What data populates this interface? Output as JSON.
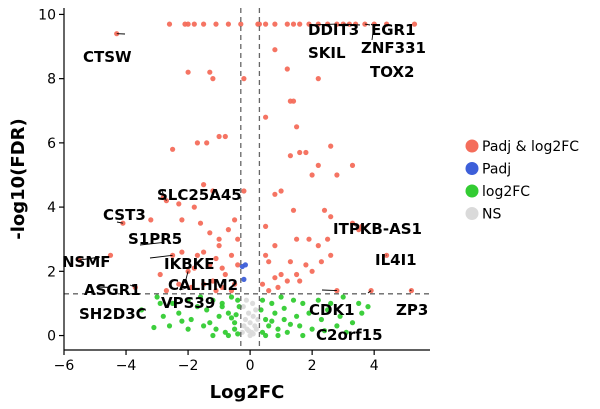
{
  "chart_data": {
    "type": "scatter",
    "xlabel": "Log2FC",
    "ylabel": "-log10(FDR)",
    "xlim": [
      -6,
      5.8
    ],
    "ylim": [
      -0.45,
      10.2
    ],
    "xticks": [
      -6,
      -4,
      -2,
      0,
      2,
      4
    ],
    "xtick_labels": [
      "−6",
      "−4",
      "−2",
      "0",
      "2",
      "4"
    ],
    "yticks": [
      0,
      2,
      4,
      6,
      8,
      10
    ],
    "ytick_labels": [
      "0",
      "2",
      "4",
      "6",
      "8",
      "10"
    ],
    "thresholds": {
      "log2fc": [
        -0.3,
        0.3
      ],
      "neg_log10_fdr": 1.3
    },
    "grid": false,
    "legend_position": "right",
    "colors": {
      "Padj & log2FC": "#f46d5b",
      "Padj": "#3d5fd9",
      "log2FC": "#33cc33",
      "NS": "#dadada"
    },
    "series": [
      {
        "name": "Padj & log2FC",
        "points": [
          [
            -4.3,
            9.4
          ],
          [
            -2.6,
            9.7
          ],
          [
            -2.1,
            9.7
          ],
          [
            -2.0,
            9.7
          ],
          [
            -1.8,
            9.7
          ],
          [
            -1.5,
            9.7
          ],
          [
            -1.1,
            9.7
          ],
          [
            -0.7,
            9.7
          ],
          [
            -0.3,
            9.7
          ],
          [
            0.25,
            9.7
          ],
          [
            0.3,
            9.7
          ],
          [
            0.5,
            9.7
          ],
          [
            0.8,
            9.7
          ],
          [
            1.2,
            9.7
          ],
          [
            1.4,
            9.7
          ],
          [
            1.6,
            9.7
          ],
          [
            1.9,
            9.7
          ],
          [
            2.2,
            9.7
          ],
          [
            2.5,
            9.7
          ],
          [
            2.8,
            9.7
          ],
          [
            3.0,
            9.7
          ],
          [
            3.2,
            9.7
          ],
          [
            3.4,
            9.7
          ],
          [
            3.7,
            9.7
          ],
          [
            4.0,
            9.7
          ],
          [
            4.4,
            9.7
          ],
          [
            5.3,
            9.7
          ],
          [
            0.8,
            8.9
          ],
          [
            1.2,
            8.3
          ],
          [
            2.2,
            8.0
          ],
          [
            -1.3,
            8.2
          ],
          [
            -1.2,
            8.0
          ],
          [
            -0.2,
            8.0
          ],
          [
            -2.0,
            8.2
          ],
          [
            1.3,
            7.3
          ],
          [
            1.4,
            7.3
          ],
          [
            0.5,
            6.8
          ],
          [
            -1.7,
            6.0
          ],
          [
            -2.5,
            5.8
          ],
          [
            -1.0,
            6.2
          ],
          [
            -0.8,
            6.2
          ],
          [
            -1.4,
            6.0
          ],
          [
            1.5,
            6.5
          ],
          [
            2.6,
            5.9
          ],
          [
            1.6,
            5.7
          ],
          [
            1.8,
            5.7
          ],
          [
            1.3,
            5.6
          ],
          [
            2.2,
            5.3
          ],
          [
            3.3,
            5.3
          ],
          [
            2.8,
            5.0
          ],
          [
            2.0,
            5.0
          ],
          [
            0.8,
            4.4
          ],
          [
            1.0,
            4.5
          ],
          [
            -0.2,
            4.5
          ],
          [
            -1.5,
            4.7
          ],
          [
            -1.2,
            4.5
          ],
          [
            -2.8,
            4.3
          ],
          [
            -2.7,
            4.2
          ],
          [
            -2.3,
            4.1
          ],
          [
            -1.8,
            4.0
          ],
          [
            1.4,
            3.9
          ],
          [
            2.4,
            3.9
          ],
          [
            2.6,
            3.7
          ],
          [
            3.6,
            3.4
          ],
          [
            3.5,
            3.3
          ],
          [
            3.3,
            3.5
          ],
          [
            -4.1,
            3.5
          ],
          [
            -3.2,
            3.6
          ],
          [
            -2.2,
            3.6
          ],
          [
            -1.6,
            3.5
          ],
          [
            -0.7,
            3.3
          ],
          [
            -0.5,
            3.6
          ],
          [
            -1.0,
            3.0
          ],
          [
            -1.3,
            3.2
          ],
          [
            -0.4,
            3.0
          ],
          [
            1.9,
            3.0
          ],
          [
            2.5,
            3.0
          ],
          [
            2.2,
            2.8
          ],
          [
            1.5,
            3.0
          ],
          [
            0.5,
            3.4
          ],
          [
            0.8,
            2.8
          ],
          [
            -2.5,
            2.5
          ],
          [
            -2.2,
            2.6
          ],
          [
            -1.7,
            2.5
          ],
          [
            -1.5,
            2.6
          ],
          [
            -1.1,
            2.4
          ],
          [
            -0.6,
            2.5
          ],
          [
            -1.3,
            2.2
          ],
          [
            -0.9,
            2.1
          ],
          [
            -0.4,
            2.2
          ],
          [
            -1.8,
            2.1
          ],
          [
            -2.0,
            2.0
          ],
          [
            0.5,
            2.5
          ],
          [
            0.6,
            2.3
          ],
          [
            1.3,
            2.3
          ],
          [
            1.8,
            2.2
          ],
          [
            2.3,
            2.3
          ],
          [
            2.6,
            2.5
          ],
          [
            2.0,
            2.0
          ],
          [
            1.0,
            1.9
          ],
          [
            1.5,
            1.9
          ],
          [
            0.8,
            1.8
          ],
          [
            1.2,
            1.7
          ],
          [
            0.4,
            1.6
          ],
          [
            0.9,
            1.5
          ],
          [
            1.6,
            1.7
          ],
          [
            -0.8,
            1.9
          ],
          [
            -1.2,
            1.7
          ],
          [
            -1.5,
            1.6
          ],
          [
            -2.3,
            1.6
          ],
          [
            -0.5,
            1.6
          ],
          [
            -0.9,
            1.5
          ],
          [
            -1.9,
            1.5
          ],
          [
            -1.1,
            1.4
          ],
          [
            -0.6,
            1.4
          ],
          [
            -2.7,
            1.4
          ],
          [
            -5.5,
            2.35
          ],
          [
            -3.7,
            1.5
          ],
          [
            -4.5,
            2.5
          ],
          [
            4.4,
            2.5
          ],
          [
            5.2,
            1.4
          ],
          [
            3.9,
            1.4
          ],
          [
            -1.0,
            2.8
          ],
          [
            0.6,
            1.4
          ],
          [
            2.8,
            1.4
          ],
          [
            -2.9,
            1.9
          ]
        ]
      },
      {
        "name": "Padj",
        "points": [
          [
            -0.15,
            2.2
          ],
          [
            -0.25,
            2.15
          ],
          [
            -0.2,
            1.75
          ]
        ]
      },
      {
        "name": "log2FC",
        "points": [
          [
            -3.0,
            1.2
          ],
          [
            -2.5,
            1.0
          ],
          [
            -2.0,
            1.1
          ],
          [
            -1.6,
            1.2
          ],
          [
            -1.2,
            1.1
          ],
          [
            -0.9,
            1.0
          ],
          [
            -0.6,
            1.2
          ],
          [
            -0.4,
            1.1
          ],
          [
            0.4,
            1.1
          ],
          [
            0.7,
            1.0
          ],
          [
            1.0,
            1.2
          ],
          [
            1.4,
            1.1
          ],
          [
            1.7,
            1.0
          ],
          [
            2.2,
            1.1
          ],
          [
            2.6,
            1.0
          ],
          [
            3.0,
            1.2
          ],
          [
            3.5,
            1.0
          ],
          [
            3.8,
            0.9
          ],
          [
            -3.5,
            0.8
          ],
          [
            -2.8,
            0.6
          ],
          [
            -2.3,
            0.7
          ],
          [
            -1.9,
            0.5
          ],
          [
            -1.4,
            0.8
          ],
          [
            -1.0,
            0.6
          ],
          [
            -0.7,
            0.7
          ],
          [
            -0.5,
            0.4
          ],
          [
            -0.35,
            0.9
          ],
          [
            0.35,
            0.8
          ],
          [
            0.5,
            0.5
          ],
          [
            0.8,
            0.7
          ],
          [
            1.1,
            0.5
          ],
          [
            1.5,
            0.6
          ],
          [
            1.9,
            0.7
          ],
          [
            2.3,
            0.5
          ],
          [
            2.9,
            0.6
          ],
          [
            3.3,
            0.4
          ],
          [
            -2.6,
            0.3
          ],
          [
            -2.0,
            0.2
          ],
          [
            -1.5,
            0.3
          ],
          [
            -1.1,
            0.2
          ],
          [
            -0.8,
            0.1
          ],
          [
            -0.5,
            0.2
          ],
          [
            -0.4,
            0.05
          ],
          [
            0.4,
            0.1
          ],
          [
            0.6,
            0.3
          ],
          [
            0.9,
            0.2
          ],
          [
            1.2,
            0.1
          ],
          [
            1.6,
            0.3
          ],
          [
            2.0,
            0.2
          ],
          [
            2.4,
            0.15
          ],
          [
            2.8,
            0.3
          ],
          [
            3.1,
            0.1
          ],
          [
            -1.7,
            0.9
          ],
          [
            -1.3,
            0.4
          ],
          [
            -0.9,
            0.9
          ],
          [
            -0.6,
            0.55
          ],
          [
            -1.2,
            0.0
          ],
          [
            -0.7,
            0.0
          ],
          [
            0.5,
            0.0
          ],
          [
            0.9,
            0.0
          ],
          [
            1.3,
            0.35
          ],
          [
            1.7,
            0.0
          ],
          [
            -3.1,
            0.25
          ],
          [
            -2.2,
            0.45
          ],
          [
            2.5,
            0.8
          ],
          [
            3.6,
            0.7
          ],
          [
            -2.9,
            1.0
          ],
          [
            1.1,
            0.85
          ],
          [
            0.7,
            0.45
          ],
          [
            -0.45,
            0.65
          ]
        ]
      },
      {
        "name": "NS",
        "points": [
          [
            -0.25,
            0.1
          ],
          [
            -0.2,
            0.3
          ],
          [
            -0.15,
            0.5
          ],
          [
            -0.1,
            0.2
          ],
          [
            -0.05,
            0.7
          ],
          [
            0.0,
            0.4
          ],
          [
            0.05,
            0.1
          ],
          [
            0.1,
            0.6
          ],
          [
            0.15,
            0.3
          ],
          [
            0.2,
            0.2
          ],
          [
            -0.22,
            0.9
          ],
          [
            -0.12,
            1.1
          ],
          [
            0.08,
            1.0
          ],
          [
            0.18,
            0.8
          ],
          [
            0.25,
            0.5
          ],
          [
            0.0,
            0.0
          ],
          [
            -0.05,
            0.15
          ],
          [
            0.1,
            0.05
          ]
        ]
      }
    ],
    "annotations": [
      {
        "text": "DDIT3",
        "x": 2.8,
        "y": 9.7
      },
      {
        "text": "EGR1",
        "x": 3.9,
        "y": 9.7
      },
      {
        "text": "SKIL",
        "x": 3.0,
        "y": 9.7
      },
      {
        "text": "ZNF331",
        "x": 3.7,
        "y": 9.7
      },
      {
        "text": "TOX2",
        "x": 4.0,
        "y": 9.7
      },
      {
        "text": "CTSW",
        "x": -4.3,
        "y": 9.4
      },
      {
        "text": "SLC25A45",
        "x": -2.7,
        "y": 4.2
      },
      {
        "text": "CST3",
        "x": -4.1,
        "y": 3.5
      },
      {
        "text": "S1PR5",
        "x": -2.8,
        "y": 2.9
      },
      {
        "text": "NSMF",
        "x": -5.5,
        "y": 2.35
      },
      {
        "text": "IKBKE",
        "x": -2.5,
        "y": 2.5
      },
      {
        "text": "ASGR1",
        "x": -3.7,
        "y": 1.5
      },
      {
        "text": "CALHM2",
        "x": -2.0,
        "y": 2.0
      },
      {
        "text": "VPS39",
        "x": -2.0,
        "y": 1.5
      },
      {
        "text": "SH2D3C",
        "x": -4.5,
        "y": 1.5
      },
      {
        "text": "ITPKB-AS1",
        "x": 3.4,
        "y": 3.4
      },
      {
        "text": "IL4I1",
        "x": 4.4,
        "y": 2.5
      },
      {
        "text": "CDK1",
        "x": 2.8,
        "y": 1.4
      },
      {
        "text": "ZP3",
        "x": 5.2,
        "y": 1.4
      },
      {
        "text": "C2orf15",
        "x": 3.9,
        "y": 1.4
      }
    ]
  }
}
